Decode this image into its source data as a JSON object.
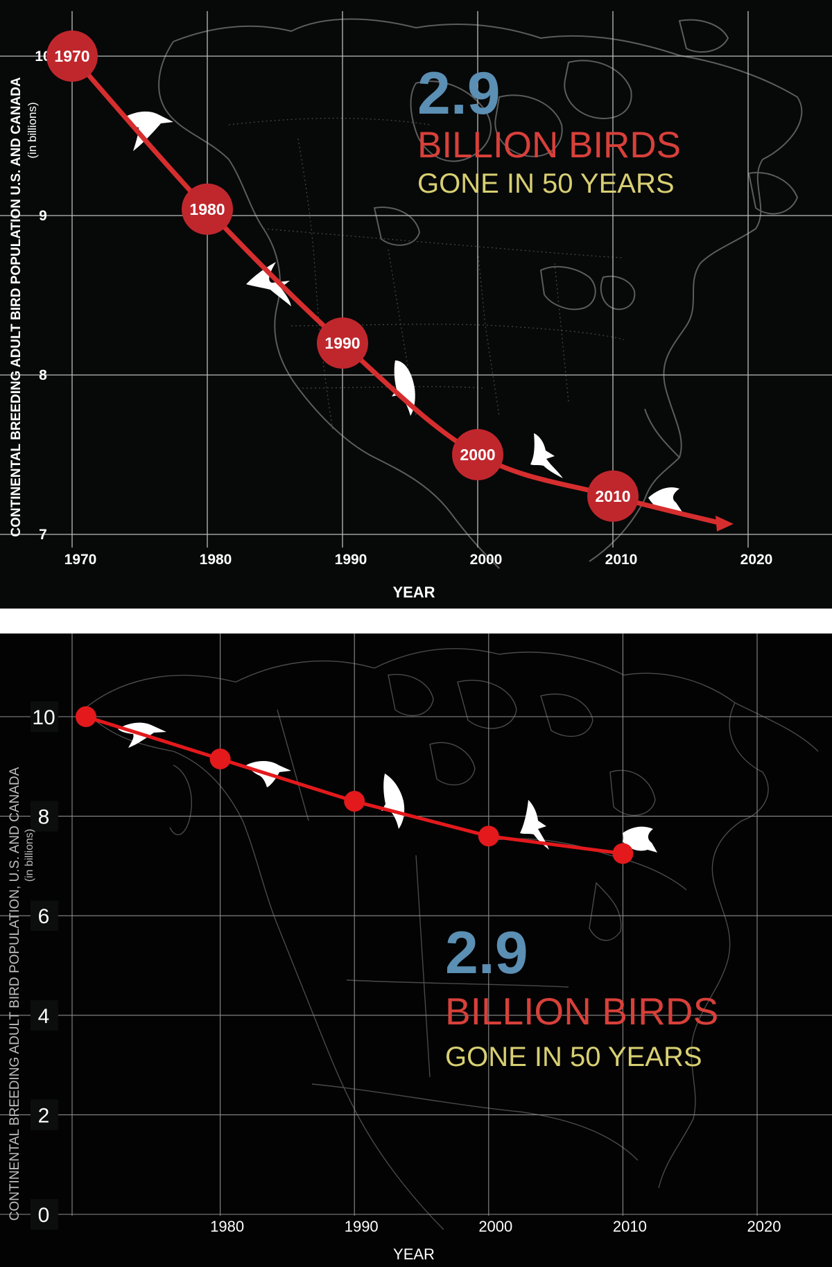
{
  "colors": {
    "accent_blue": "#5b8fb3",
    "accent_red": "#d8403a",
    "accent_yellow": "#d8cf73",
    "line_red_top": "#d62e2e",
    "marker_red_top": "#c0272d",
    "line_red_bottom": "#e3191c"
  },
  "top_panel": {
    "headline": {
      "number": "2.9",
      "line1": "BILLION BIRDS",
      "line2": "GONE IN 50 YEARS"
    }
  },
  "bottom_panel": {
    "headline": {
      "number": "2.9",
      "line1": "BILLION BIRDS",
      "line2": "GONE IN 50 YEARS"
    }
  },
  "chart_data": [
    {
      "type": "line",
      "background": "map of North America with bird silhouettes",
      "x": [
        1970,
        1980,
        1990,
        2000,
        2010
      ],
      "y": [
        10.0,
        9.04,
        8.2,
        7.5,
        7.24
      ],
      "point_labels": [
        "1970",
        "1980",
        "1990",
        "2000",
        "2010"
      ],
      "x_ticks": [
        "1970",
        "1980",
        "1990",
        "2000",
        "2010",
        "2020"
      ],
      "y_ticks": [
        "10",
        "9",
        "8",
        "7"
      ],
      "xlim": [
        1969,
        2029
      ],
      "ylim": [
        7,
        10.3
      ],
      "xlabel": "YEAR",
      "ylabel": "CONTINENTAL BREEDING ADULT BIRD POPULATION U.S. AND CANADA",
      "ylabel_sub": "(in billions)",
      "trend_arrow_end": {
        "x": 2018,
        "y": 7.07
      },
      "grid": true
    },
    {
      "type": "line",
      "background": "map of North America with bird silhouettes",
      "x": [
        1970,
        1980,
        1990,
        2000,
        2010
      ],
      "y": [
        10.0,
        9.15,
        8.3,
        7.6,
        7.25
      ],
      "x_ticks": [
        "1980",
        "1990",
        "2000",
        "2010",
        "2020"
      ],
      "y_ticks": [
        "0",
        "2",
        "4",
        "6",
        "8",
        "10"
      ],
      "xlim": [
        1969,
        2029
      ],
      "ylim": [
        0,
        11.2
      ],
      "xlabel": "YEAR",
      "ylabel": "CONTINENTAL BREEDING ADULT BIRD POPULATION, U.S. AND CANADA",
      "ylabel_sub": "(in billions)",
      "grid": true
    }
  ]
}
